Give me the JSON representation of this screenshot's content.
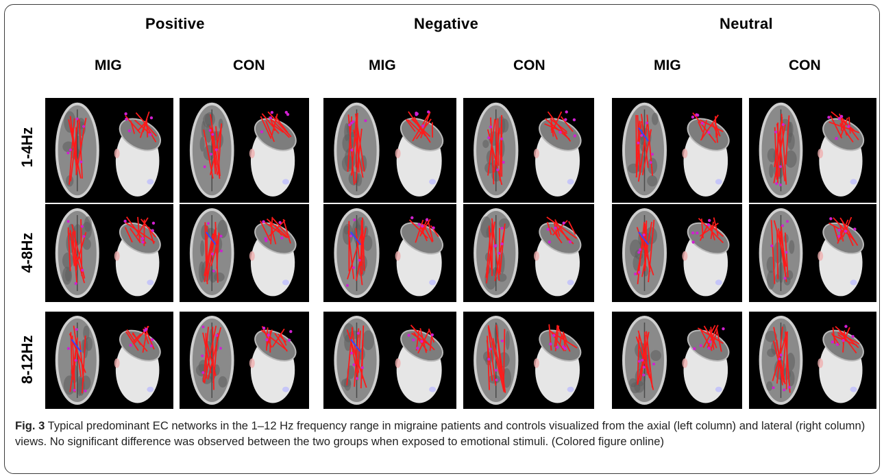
{
  "conditions": [
    "Positive",
    "Negative",
    "Neutral"
  ],
  "groups": [
    "MIG",
    "CON",
    "MIG",
    "CON",
    "MIG",
    "CON"
  ],
  "frequency_bands": [
    "1-4Hz",
    "4-8Hz",
    "8-12Hz"
  ],
  "views": [
    "axial",
    "lateral"
  ],
  "caption": {
    "figure_label": "Fig. 3",
    "text": "Typical predominant EC networks in the 1–12 Hz frequency range in migraine patients and controls visualized from the axial (left column) and lateral (right column) views. No significant difference was observed between the two groups when exposed to emotional stimuli. (Colored figure online)"
  },
  "colors": {
    "panel_background": "#000000",
    "network_edges": "#ff1a1a",
    "network_edges_secondary": "#3344ff",
    "node_markers": "#d020d0",
    "brain_tissue": "#8a8a8a",
    "head_surface": "#e6e6e6"
  }
}
